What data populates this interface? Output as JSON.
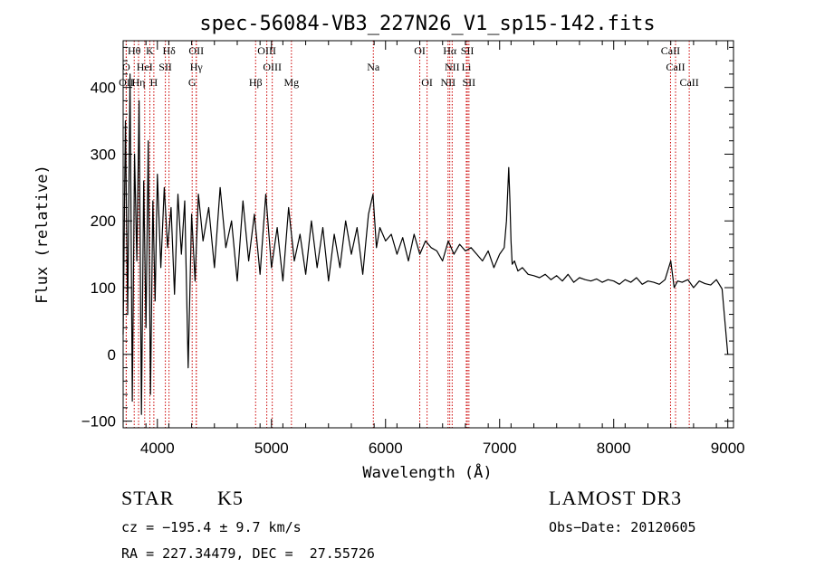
{
  "chart_data": {
    "type": "line",
    "title": "spec-56084-VB3_227N26_V1_sp15-142.fits",
    "xlabel": "Wavelength (Å)",
    "ylabel": "Flux (relative)",
    "xlim": [
      3700,
      9050
    ],
    "ylim": [
      -110,
      470
    ],
    "xticks": [
      4000,
      5000,
      6000,
      7000,
      8000,
      9000
    ],
    "yticks": [
      -100,
      0,
      100,
      200,
      300,
      400
    ],
    "xtick_labels": [
      "4000",
      "5000",
      "6000",
      "7000",
      "8000",
      "9000"
    ],
    "ytick_labels": [
      "−100",
      "0",
      "100",
      "200",
      "300",
      "400"
    ],
    "series": [
      {
        "name": "flux",
        "x": [
          3700,
          3720,
          3740,
          3760,
          3780,
          3800,
          3820,
          3840,
          3860,
          3880,
          3900,
          3920,
          3940,
          3960,
          3980,
          4000,
          4030,
          4060,
          4090,
          4120,
          4150,
          4180,
          4210,
          4240,
          4270,
          4300,
          4330,
          4360,
          4400,
          4450,
          4500,
          4550,
          4600,
          4650,
          4700,
          4750,
          4800,
          4850,
          4900,
          4950,
          5000,
          5050,
          5100,
          5150,
          5200,
          5250,
          5300,
          5350,
          5400,
          5450,
          5500,
          5550,
          5600,
          5650,
          5700,
          5750,
          5800,
          5850,
          5890,
          5920,
          5950,
          6000,
          6050,
          6100,
          6150,
          6200,
          6250,
          6300,
          6350,
          6400,
          6450,
          6500,
          6550,
          6600,
          6650,
          6700,
          6750,
          6800,
          6850,
          6900,
          6950,
          7000,
          7040,
          7060,
          7080,
          7090,
          7100,
          7110,
          7130,
          7160,
          7200,
          7250,
          7300,
          7350,
          7400,
          7450,
          7500,
          7550,
          7600,
          7650,
          7700,
          7750,
          7800,
          7850,
          7900,
          7950,
          8000,
          8050,
          8100,
          8150,
          8200,
          8250,
          8300,
          8350,
          8400,
          8450,
          8500,
          8530,
          8560,
          8600,
          8650,
          8700,
          8750,
          8800,
          8850,
          8900,
          8950,
          9000
        ],
        "y": [
          30,
          350,
          60,
          420,
          -70,
          300,
          140,
          380,
          -90,
          260,
          40,
          320,
          -60,
          230,
          80,
          270,
          130,
          250,
          160,
          220,
          90,
          240,
          150,
          230,
          -20,
          210,
          110,
          240,
          170,
          220,
          130,
          250,
          160,
          200,
          110,
          230,
          140,
          210,
          120,
          240,
          130,
          190,
          110,
          220,
          140,
          180,
          120,
          200,
          130,
          190,
          110,
          180,
          130,
          200,
          150,
          190,
          120,
          210,
          240,
          160,
          190,
          170,
          180,
          150,
          175,
          140,
          180,
          150,
          170,
          160,
          155,
          140,
          170,
          150,
          165,
          155,
          160,
          150,
          140,
          155,
          130,
          150,
          160,
          200,
          280,
          230,
          170,
          135,
          140,
          125,
          130,
          120,
          118,
          115,
          120,
          112,
          118,
          110,
          120,
          108,
          115,
          112,
          110,
          113,
          108,
          112,
          110,
          105,
          112,
          108,
          115,
          105,
          110,
          108,
          105,
          112,
          140,
          100,
          110,
          108,
          112,
          100,
          110,
          106,
          104,
          112,
          98,
          0
        ]
      }
    ],
    "spectral_lines": [
      {
        "label": "Hθ",
        "x": 3797,
        "row": 1
      },
      {
        "label": "K",
        "x": 3934,
        "row": 1
      },
      {
        "label": "Hδ",
        "x": 4102,
        "row": 1
      },
      {
        "label": "OII",
        "x": 4341,
        "row": 1
      },
      {
        "label": "OIII",
        "x": 4959,
        "row": 1
      },
      {
        "label": "OI",
        "x": 6300,
        "row": 1
      },
      {
        "label": "Hα",
        "x": 6563,
        "row": 1
      },
      {
        "label": "SII",
        "x": 6717,
        "row": 1
      },
      {
        "label": "CaII",
        "x": 8498,
        "row": 1
      },
      {
        "label": "O",
        "x": 3727,
        "row": 2
      },
      {
        "label": "HeI",
        "x": 3889,
        "row": 2
      },
      {
        "label": "SII",
        "x": 4070,
        "row": 2
      },
      {
        "label": "Hγ",
        "x": 4341,
        "row": 2
      },
      {
        "label": "OIII",
        "x": 5007,
        "row": 2
      },
      {
        "label": "Na",
        "x": 5893,
        "row": 2
      },
      {
        "label": "NII",
        "x": 6584,
        "row": 2
      },
      {
        "label": "Li",
        "x": 6708,
        "row": 2
      },
      {
        "label": "CaII",
        "x": 8542,
        "row": 2
      },
      {
        "label": "OII",
        "x": 3727,
        "row": 3
      },
      {
        "label": "Hη",
        "x": 3835,
        "row": 3
      },
      {
        "label": "H",
        "x": 3969,
        "row": 3
      },
      {
        "label": "G",
        "x": 4305,
        "row": 3
      },
      {
        "label": "Hβ",
        "x": 4861,
        "row": 3
      },
      {
        "label": "Mg",
        "x": 5175,
        "row": 3
      },
      {
        "label": "OI",
        "x": 6364,
        "row": 3
      },
      {
        "label": "NII",
        "x": 6548,
        "row": 3
      },
      {
        "label": "SII",
        "x": 6731,
        "row": 3
      },
      {
        "label": "CaII",
        "x": 8662,
        "row": 3
      }
    ],
    "line_color": "#cc0000",
    "series_color": "#000000"
  },
  "footer": {
    "object_class": "STAR",
    "subclass": "K5",
    "survey": "LAMOST DR3",
    "cz": "cz = −195.4 ± 9.7 km/s",
    "obs_date": "Obs−Date: 20120605",
    "coords": "RA = 227.34479, DEC =  27.55726"
  }
}
